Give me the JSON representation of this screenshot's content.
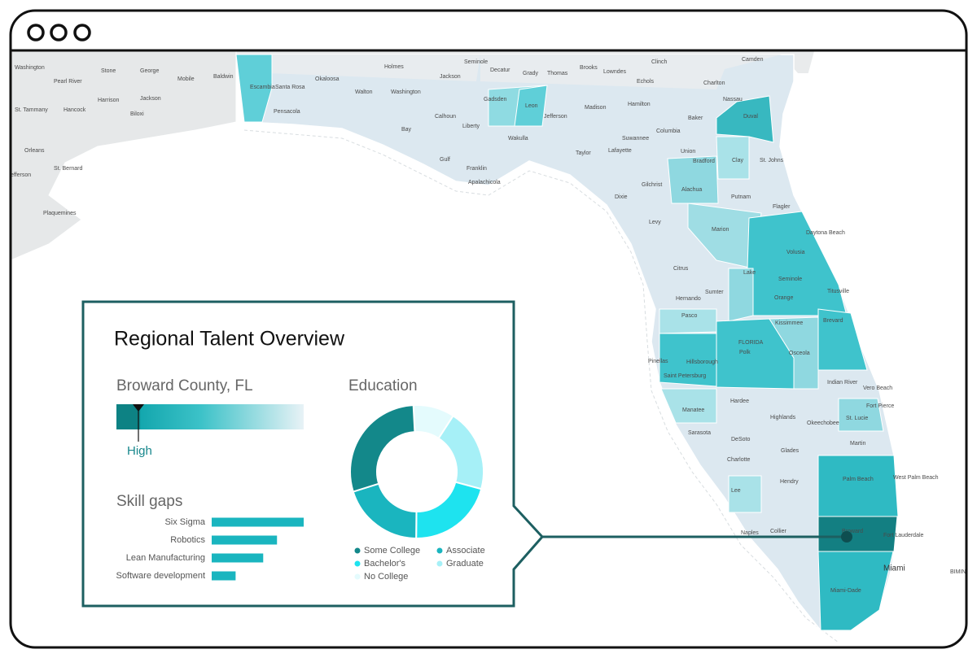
{
  "map": {
    "labels": [
      "Washington",
      "Pearl River",
      "Stone",
      "George",
      "Mobile",
      "Baldwin",
      "Harrison",
      "Jackson",
      "Hancock",
      "St. Tammany",
      "Biloxi",
      "Orleans",
      "St. Bernard",
      "efferson",
      "Plaquemines",
      "Escambia",
      "Santa Rosa",
      "Pensacola",
      "Okaloosa",
      "Walton",
      "Holmes",
      "Washington",
      "Jackson",
      "Seminole",
      "Decatur",
      "Grady",
      "Thomas",
      "Brooks",
      "Lowndes",
      "Echols",
      "Clinch",
      "Camden",
      "Charlton",
      "Nassau",
      "Gadsden",
      "Leon",
      "Madison",
      "Hamilton",
      "Calhoun",
      "Liberty",
      "Jefferson",
      "Baker",
      "Duval",
      "Bay",
      "Wakulla",
      "Suwannee",
      "Columbia",
      "Taylor",
      "Lafayette",
      "Union",
      "Bradford",
      "Clay",
      "St. Johns",
      "Gulf",
      "Franklin",
      "Apalachicola",
      "Gilchrist",
      "Alachua",
      "Putnam",
      "Dixie",
      "Flagler",
      "Levy",
      "Marion",
      "Daytona Beach",
      "Volusia",
      "Citrus",
      "Lake",
      "Seminole",
      "Titusville",
      "Sumter",
      "Hernando",
      "Orange",
      "Pasco",
      "Kissimmee",
      "Brevard",
      "FLORIDA",
      "Polk",
      "Osceola",
      "Pinellas",
      "Hillsborough",
      "Saint Petersburg",
      "Indian River",
      "Vero Beach",
      "Hardee",
      "Fort Pierce",
      "Manatee",
      "Highlands",
      "Okeechobee",
      "St. Lucie",
      "Sarasota",
      "DeSoto",
      "Martin",
      "Glades",
      "Charlotte",
      "Palm Beach",
      "West Palm Beach",
      "Hendry",
      "Lee",
      "Naples",
      "Collier",
      "Broward",
      "Fort Lauderdale",
      "Miami",
      "Miami-Dade",
      "BIMIN"
    ]
  },
  "panel": {
    "title": "Regional Talent Overview",
    "location": "Broward County, FL",
    "level": "High"
  },
  "chart_data": [
    {
      "type": "bar",
      "title": "Skill gaps",
      "orientation": "horizontal",
      "categories": [
        "Six Sigma",
        "Robotics",
        "Lean Manufacturing",
        "Software development"
      ],
      "values": [
        100,
        71,
        56,
        26
      ],
      "xlim": [
        0,
        100
      ],
      "color": "#1ab5bf"
    },
    {
      "type": "pie",
      "title": "Education",
      "donut": true,
      "categories": [
        "Some College",
        "Associate",
        "Bachelor's",
        "Graduate",
        "No College"
      ],
      "values": [
        29,
        20,
        21,
        20,
        10
      ],
      "colors": [
        "#13888a",
        "#1ab5bf",
        "#1ee3ef",
        "#a6f0f7",
        "#e4fbfd"
      ]
    }
  ]
}
